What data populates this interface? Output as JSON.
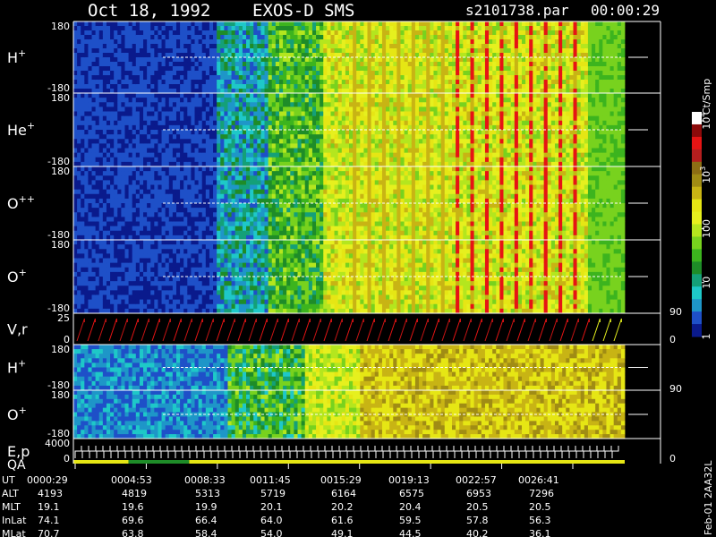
{
  "header": {
    "date": "Oct 18, 1992",
    "mission": "EXOS-D SMS",
    "file": "s2101738.par",
    "time": "00:00:29"
  },
  "colorbar": {
    "unit": "Ct/Smp",
    "ticks": [
      {
        "label": "1",
        "value": 1
      },
      {
        "label": "10",
        "value": 10
      },
      {
        "label": "100",
        "value": 100
      },
      {
        "label": "10",
        "value": 1000,
        "exp": "3"
      },
      {
        "label": "10",
        "value": 10000,
        "exp": "4"
      }
    ],
    "colors": [
      "#0a1a8c",
      "#1e50c8",
      "#1e96c8",
      "#1ec8c8",
      "#14a078",
      "#1e8c28",
      "#3cb41e",
      "#78d21e",
      "#b4e61e",
      "#e6f01e",
      "#e6e614",
      "#c8b414",
      "#a08c14",
      "#8c6e14",
      "#b41e1e",
      "#e61414",
      "#8c0a0a",
      "#ffffff"
    ]
  },
  "chart_data": {
    "type": "heatmap",
    "x_axis": {
      "label": "UT",
      "ticks": [
        "0000:29",
        "0004:53",
        "0008:33",
        "0011:45",
        "0015:29",
        "0019:13",
        "0022:57",
        "0026:41"
      ]
    },
    "panels": [
      {
        "name": "H",
        "sup": "+",
        "top": "180",
        "bottom": "-180",
        "kind": "angle"
      },
      {
        "name": "He",
        "sup": "+",
        "top": "180",
        "bottom": "-180",
        "kind": "angle"
      },
      {
        "name": "O",
        "sup": "++",
        "top": "180",
        "bottom": "-180",
        "kind": "angle"
      },
      {
        "name": "O",
        "sup": "+",
        "top": "180",
        "bottom": "-180",
        "kind": "angle"
      },
      {
        "name": "V,r",
        "sup": "",
        "top": "25",
        "bottom": "0",
        "right_top": "90",
        "right_bottom": "0",
        "kind": "ramp"
      },
      {
        "name": "H",
        "sup": "+",
        "top": "180",
        "bottom": "-180",
        "kind": "angle2"
      },
      {
        "name": "O",
        "sup": "+",
        "top": "180",
        "bottom": "-180",
        "right_top": "90",
        "kind": "angle2"
      },
      {
        "name": "E,p",
        "name2": "QA",
        "sup": "",
        "top": "4000",
        "bottom": "0",
        "right_bottom": "0",
        "kind": "steps"
      }
    ],
    "orbit_table": [
      {
        "label": "UT",
        "values": [
          "0000:29",
          "0004:53",
          "0008:33",
          "0011:45",
          "0015:29",
          "0019:13",
          "0022:57",
          "0026:41"
        ]
      },
      {
        "label": "ALT",
        "values": [
          "4193",
          "4819",
          "5313",
          "5719",
          "6164",
          "6575",
          "6953",
          "7296"
        ]
      },
      {
        "label": "MLT",
        "values": [
          "19.1",
          "19.6",
          "19.9",
          "20.1",
          "20.2",
          "20.4",
          "20.5",
          "20.5"
        ]
      },
      {
        "label": "InLat",
        "values": [
          "74.1",
          "69.6",
          "66.4",
          "64.0",
          "61.6",
          "59.5",
          "57.8",
          "56.3"
        ]
      },
      {
        "label": "MLat",
        "values": [
          "70.7",
          "63.8",
          "58.4",
          "54.0",
          "49.1",
          "44.5",
          "40.2",
          "36.1"
        ]
      }
    ]
  },
  "side_label": "Feb-01 2AA32L"
}
